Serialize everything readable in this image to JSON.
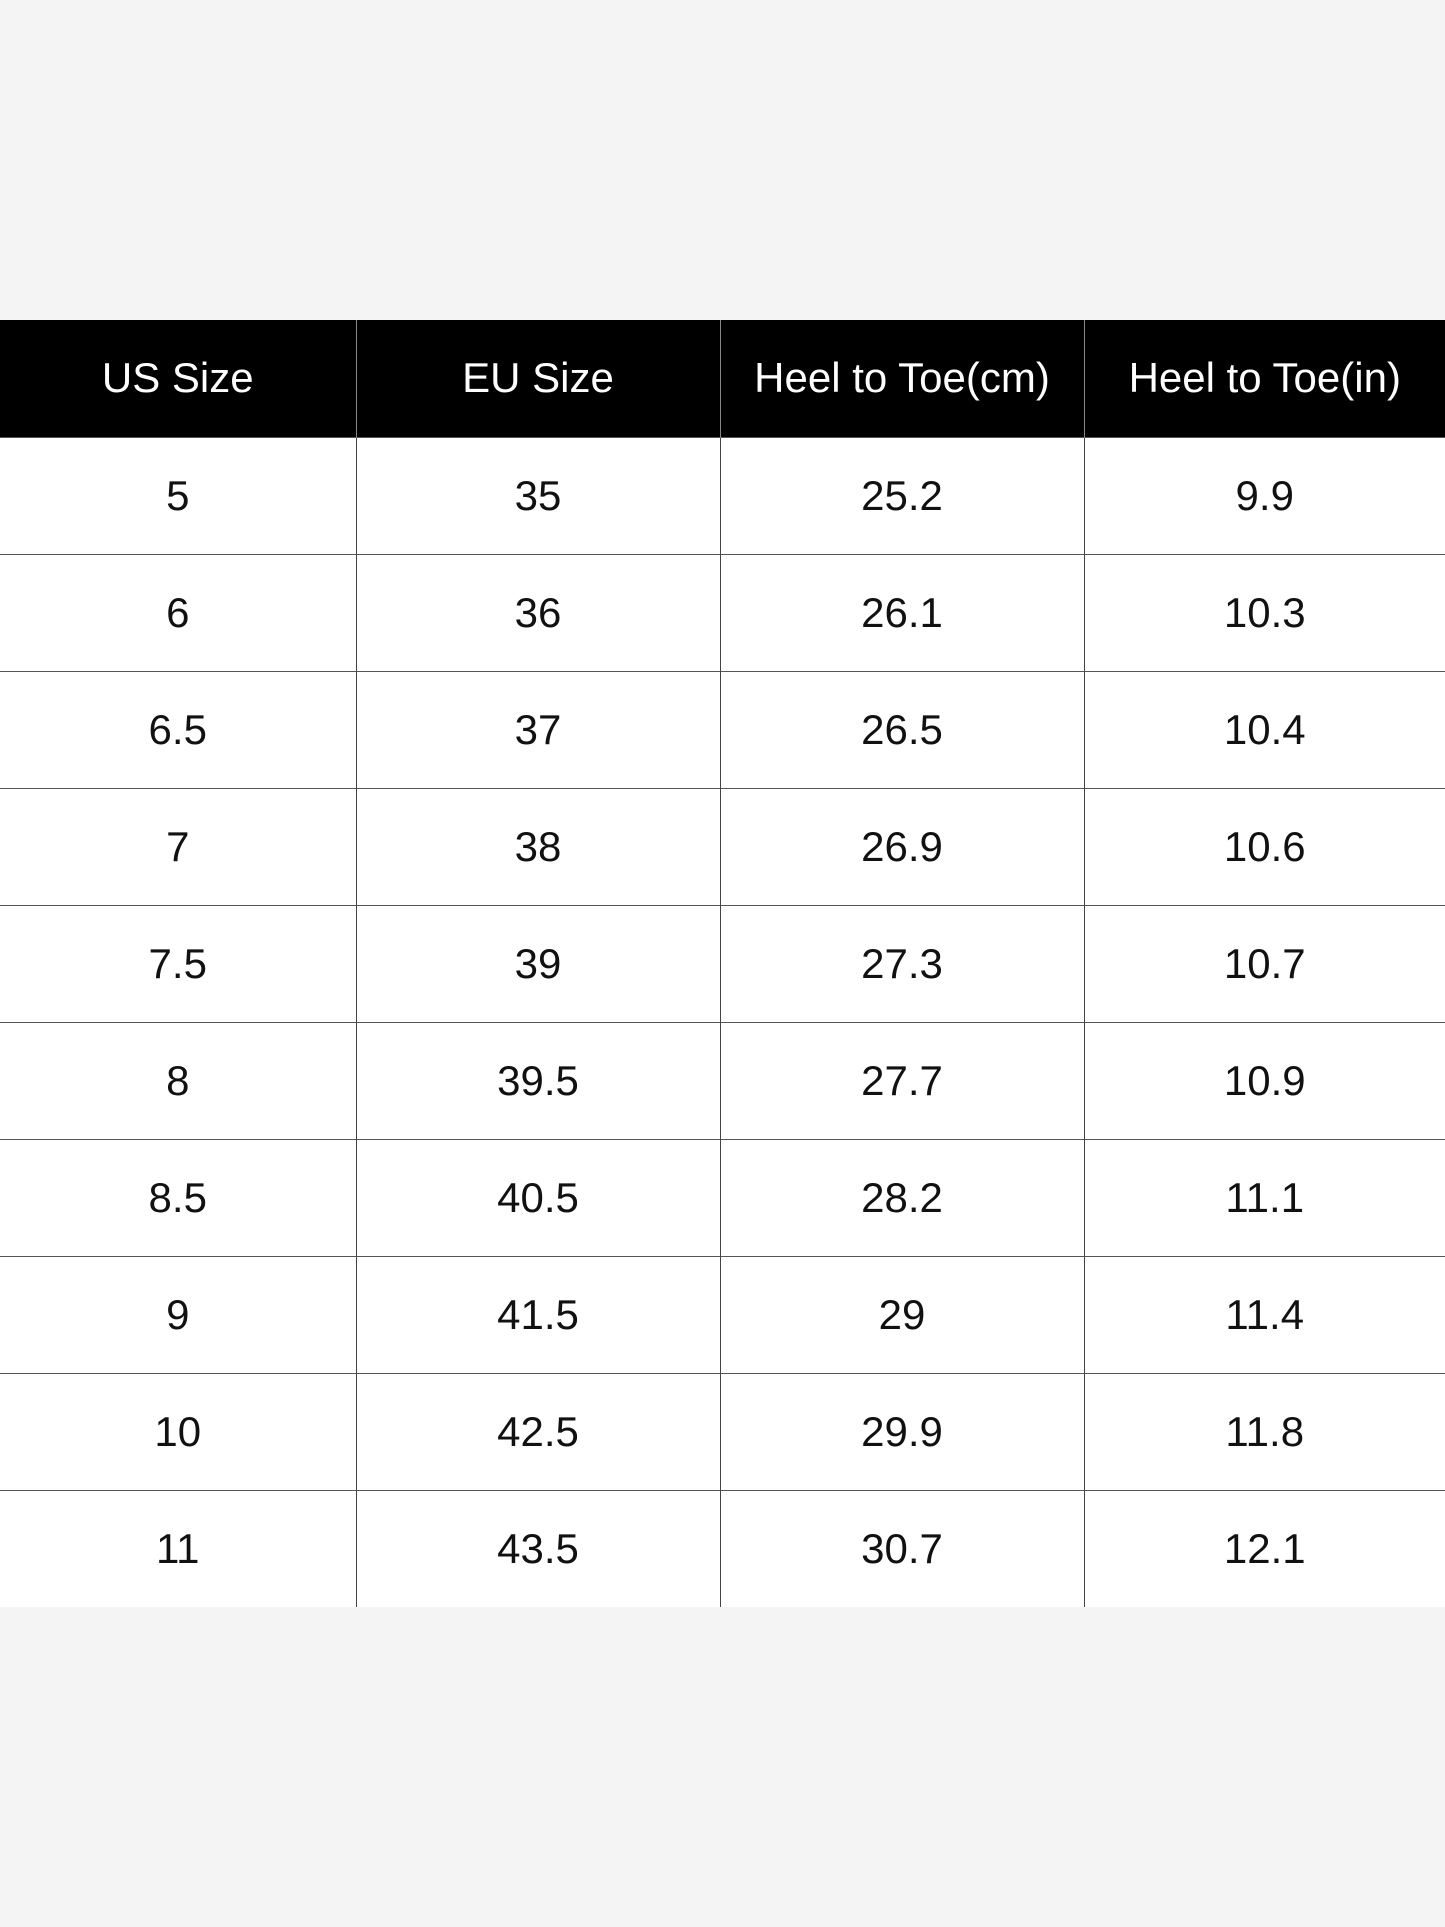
{
  "table": {
    "header": [
      "US Size",
      "EU Size",
      "Heel to Toe(cm)",
      "Heel to Toe(in)"
    ],
    "rows": [
      [
        "5",
        "35",
        "25.2",
        "9.9"
      ],
      [
        "6",
        "36",
        "26.1",
        "10.3"
      ],
      [
        "6.5",
        "37",
        "26.5",
        "10.4"
      ],
      [
        "7",
        "38",
        "26.9",
        "10.6"
      ],
      [
        "7.5",
        "39",
        "27.3",
        "10.7"
      ],
      [
        "8",
        "39.5",
        "27.7",
        "10.9"
      ],
      [
        "8.5",
        "40.5",
        "28.2",
        "11.1"
      ],
      [
        "9",
        "41.5",
        "29",
        "11.4"
      ],
      [
        "10",
        "42.5",
        "29.9",
        "11.8"
      ],
      [
        "11",
        "43.5",
        "30.7",
        "12.1"
      ]
    ]
  }
}
